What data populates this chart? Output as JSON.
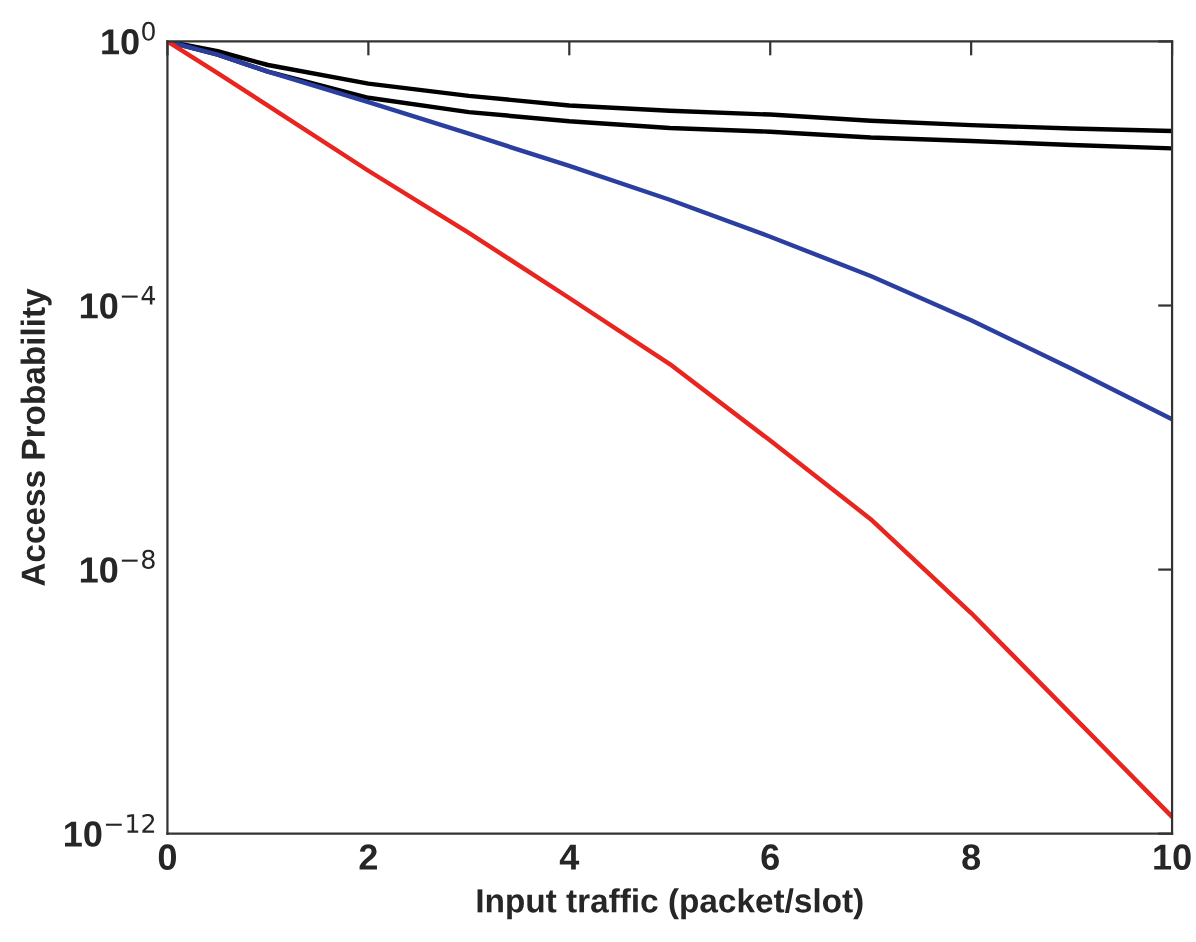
{
  "chart_data": {
    "type": "line",
    "xlabel": "Input traffic (packet/slot)",
    "ylabel": "Access Probability",
    "x": [
      0,
      0.5,
      1,
      2,
      3,
      4,
      5,
      6,
      7,
      8,
      9,
      10
    ],
    "series": [
      {
        "color": "#000000",
        "values": [
          1,
          0.71,
          0.44,
          0.23,
          0.15,
          0.107,
          0.089,
          0.078,
          0.063,
          0.054,
          0.048,
          0.044
        ]
      },
      {
        "color": "#000000",
        "values": [
          1,
          0.63,
          0.35,
          0.14,
          0.085,
          0.062,
          0.049,
          0.043,
          0.035,
          0.031,
          0.027,
          0.024
        ]
      },
      {
        "color": "#2b3fa0",
        "values": [
          1,
          0.63,
          0.35,
          0.12,
          0.04,
          0.013,
          0.004,
          0.0011,
          0.00028,
          6e-05,
          1.1e-05,
          1.9e-06
        ]
      },
      {
        "color": "#e8251f",
        "values": [
          1,
          0.33,
          0.107,
          0.011,
          0.00126,
          0.00013,
          1.3e-05,
          9e-07,
          5.8e-08,
          2.2e-09,
          6.3e-11,
          1.8e-12
        ]
      }
    ],
    "log": "y",
    "xlim": [
      0,
      10
    ],
    "ylim": [
      1e-12,
      1
    ],
    "xticks": [
      0,
      2,
      4,
      6,
      8,
      10
    ],
    "yticks": [
      {
        "value": 1e-12,
        "label": "10$^{−12}$"
      },
      {
        "value": 1e-08,
        "label": "10$^{−8}$"
      },
      {
        "value": 0.0001,
        "label": "10$^{−4}$"
      },
      {
        "value": 1,
        "label": "10$^{0}$"
      }
    ],
    "marker": "none",
    "line_style": "solid"
  }
}
